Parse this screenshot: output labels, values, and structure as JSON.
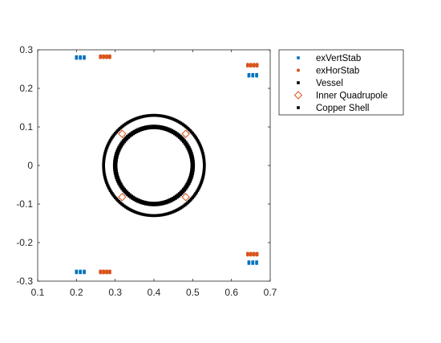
{
  "chart_data": {
    "type": "scatter",
    "title": "",
    "xlabel": "",
    "ylabel": "",
    "xlim": [
      0.1,
      0.7
    ],
    "ylim": [
      -0.3,
      0.3
    ],
    "xticks": [
      0.1,
      0.2,
      0.3,
      0.4,
      0.5,
      0.6,
      0.7
    ],
    "xtick_labels": [
      "0.1",
      "0.2",
      "0.3",
      "0.4",
      "0.5",
      "0.6",
      "0.7"
    ],
    "yticks": [
      -0.3,
      -0.2,
      -0.1,
      0,
      0.1,
      0.2,
      0.3
    ],
    "ytick_labels": [
      "-0.3",
      "-0.2",
      "-0.1",
      "0",
      "0.1",
      "0.2",
      "0.3"
    ],
    "grid": false,
    "legend_position": "top-right, outside axes",
    "series": [
      {
        "name": "exVertStab",
        "color": "#0072BD",
        "marker": "square",
        "points": [
          [
            0.2,
            0.282
          ],
          [
            0.21,
            0.282
          ],
          [
            0.22,
            0.282
          ],
          [
            0.2,
            0.278
          ],
          [
            0.21,
            0.278
          ],
          [
            0.22,
            0.278
          ],
          [
            0.645,
            0.236
          ],
          [
            0.655,
            0.236
          ],
          [
            0.665,
            0.236
          ],
          [
            0.645,
            0.232
          ],
          [
            0.655,
            0.232
          ],
          [
            0.665,
            0.232
          ],
          [
            0.2,
            -0.274
          ],
          [
            0.21,
            -0.274
          ],
          [
            0.22,
            -0.274
          ],
          [
            0.2,
            -0.278
          ],
          [
            0.21,
            -0.278
          ],
          [
            0.22,
            -0.278
          ],
          [
            0.645,
            -0.25
          ],
          [
            0.655,
            -0.25
          ],
          [
            0.665,
            -0.25
          ],
          [
            0.645,
            -0.254
          ],
          [
            0.655,
            -0.254
          ],
          [
            0.665,
            -0.254
          ]
        ]
      },
      {
        "name": "exHorStab",
        "color": "#D95319",
        "marker": "dot",
        "points": [
          [
            0.262,
            0.284
          ],
          [
            0.27,
            0.284
          ],
          [
            0.278,
            0.284
          ],
          [
            0.286,
            0.284
          ],
          [
            0.262,
            0.28
          ],
          [
            0.27,
            0.28
          ],
          [
            0.278,
            0.28
          ],
          [
            0.286,
            0.28
          ],
          [
            0.642,
            0.262
          ],
          [
            0.65,
            0.262
          ],
          [
            0.658,
            0.262
          ],
          [
            0.666,
            0.262
          ],
          [
            0.642,
            0.258
          ],
          [
            0.65,
            0.258
          ],
          [
            0.658,
            0.258
          ],
          [
            0.666,
            0.258
          ],
          [
            0.262,
            -0.274
          ],
          [
            0.27,
            -0.274
          ],
          [
            0.278,
            -0.274
          ],
          [
            0.286,
            -0.274
          ],
          [
            0.262,
            -0.278
          ],
          [
            0.27,
            -0.278
          ],
          [
            0.278,
            -0.278
          ],
          [
            0.286,
            -0.278
          ],
          [
            0.642,
            -0.228
          ],
          [
            0.65,
            -0.228
          ],
          [
            0.658,
            -0.228
          ],
          [
            0.666,
            -0.228
          ],
          [
            0.642,
            -0.232
          ],
          [
            0.65,
            -0.232
          ],
          [
            0.658,
            -0.232
          ],
          [
            0.666,
            -0.232
          ]
        ]
      },
      {
        "name": "Vessel",
        "color": "#000000",
        "marker": "square",
        "shape": "circle",
        "center": [
          0.4,
          0.0
        ],
        "radii": [
          0.098,
          0.102
        ],
        "n_points": 120
      },
      {
        "name": "Inner Quadrupole",
        "color": "#D95319",
        "marker": "diamond",
        "points": [
          [
            0.318,
            0.082
          ],
          [
            0.482,
            0.082
          ],
          [
            0.318,
            -0.082
          ],
          [
            0.482,
            -0.082
          ]
        ]
      },
      {
        "name": "Copper Shell",
        "color": "#000000",
        "marker": "square",
        "shape": "circle",
        "center": [
          0.4,
          0.0
        ],
        "radii": [
          0.13
        ],
        "n_points": 180
      }
    ]
  }
}
